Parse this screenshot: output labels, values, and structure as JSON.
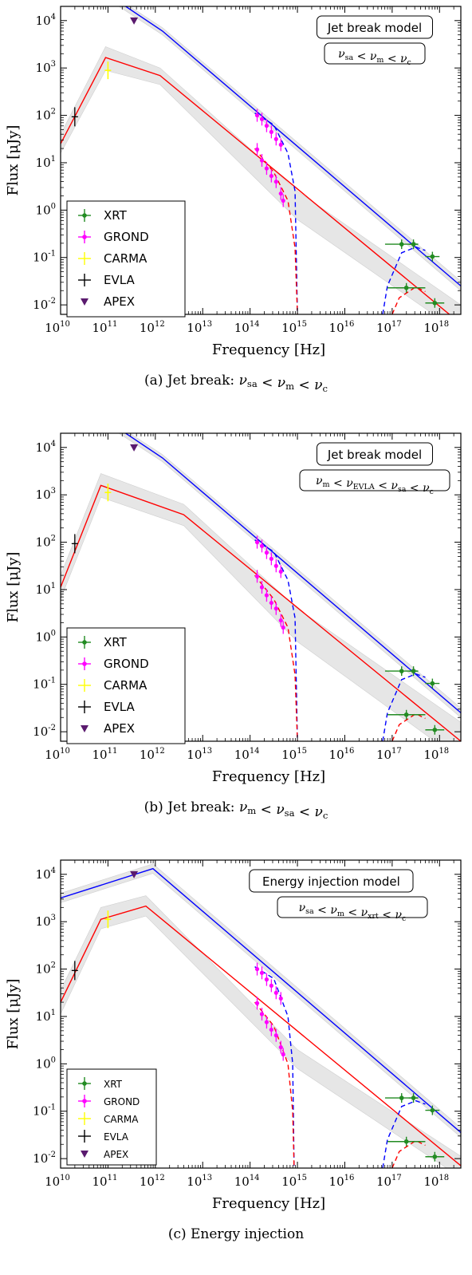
{
  "chart_data": [
    {
      "type": "line",
      "panel": "a",
      "caption": "(a) Jet break: ν_sa < ν_m < ν_c",
      "caption_parts": [
        "(a) Jet break: ",
        "ν",
        "sa",
        " < ",
        "ν",
        "m",
        " < ",
        "ν",
        "c"
      ],
      "model_title": "Jet break model",
      "model_condition": [
        "ν",
        "sa",
        " < ",
        "ν",
        "m",
        " < ",
        "ν",
        "c"
      ],
      "xlabel": "Frequency [Hz]",
      "ylabel": "Flux [μJy]",
      "xscale": "log",
      "yscale": "log",
      "xlim_log10": [
        10,
        18.45
      ],
      "ylim_log10": [
        -2.2,
        4.3
      ],
      "x_ticks": [
        "10",
        "11",
        "12",
        "13",
        "14",
        "15",
        "16",
        "17",
        "18"
      ],
      "y_ticks": [
        "-2",
        "-1",
        "0",
        "1",
        "2",
        "3",
        "4"
      ],
      "legend": [
        "XRT",
        "GROND",
        "CARMA",
        "EVLA",
        "APEX"
      ],
      "legend_placement": "lower-left",
      "series": [
        {
          "color": "#0000ff",
          "style": "solid",
          "points": [
            [
              10.0,
              4.75
            ],
            [
              11.0,
              4.55
            ],
            [
              12.15,
              3.78
            ],
            [
              18.45,
              -1.6
            ]
          ]
        },
        {
          "color": "#ff0000",
          "style": "solid",
          "points": [
            [
              10.0,
              1.4
            ],
            [
              10.95,
              3.22
            ],
            [
              12.1,
              2.84
            ],
            [
              18.45,
              -2.4
            ]
          ]
        },
        {
          "color": "#0000ff",
          "style": "dashed",
          "points": [
            [
              14.1,
              2.05
            ],
            [
              14.5,
              1.8
            ],
            [
              14.8,
              1.2
            ],
            [
              14.95,
              0.4
            ],
            [
              15.0,
              -2.2
            ]
          ]
        },
        {
          "color": "#ff0000",
          "style": "dashed",
          "points": [
            [
              14.1,
              1.3
            ],
            [
              14.5,
              0.8
            ],
            [
              14.8,
              0.2
            ],
            [
              14.95,
              -0.8
            ],
            [
              15.0,
              -2.2
            ]
          ]
        },
        {
          "color": "#0000ff",
          "style": "dashed",
          "points": [
            [
              16.8,
              -2.2
            ],
            [
              16.9,
              -1.6
            ],
            [
              17.2,
              -0.9
            ],
            [
              17.5,
              -0.78
            ],
            [
              17.7,
              -0.85
            ]
          ]
        },
        {
          "color": "#ff0000",
          "style": "dashed",
          "points": [
            [
              17.0,
              -2.2
            ],
            [
              17.15,
              -1.85
            ],
            [
              17.5,
              -1.62
            ],
            [
              17.7,
              -1.72
            ]
          ]
        }
      ],
      "bands": [
        {
          "upper": [
            [
              10.0,
              1.6
            ],
            [
              10.95,
              3.45
            ],
            [
              12.1,
              3.0
            ],
            [
              15.0,
              0.4
            ],
            [
              18.45,
              -2.0
            ]
          ],
          "lower": [
            [
              10.0,
              1.2
            ],
            [
              10.95,
              2.95
            ],
            [
              12.1,
              2.65
            ],
            [
              15.0,
              -0.2
            ],
            [
              18.45,
              -2.6
            ]
          ]
        },
        {
          "upper": [
            [
              11.0,
              4.6
            ],
            [
              12.15,
              3.85
            ],
            [
              18.45,
              -1.5
            ]
          ],
          "lower": [
            [
              11.0,
              4.45
            ],
            [
              12.15,
              3.7
            ],
            [
              18.45,
              -1.7
            ]
          ]
        }
      ],
      "data": {
        "XRT": [
          [
            17.2,
            -0.72,
            0.35
          ],
          [
            17.45,
            -0.72,
            0.1
          ],
          [
            17.85,
            -0.98,
            0.15
          ],
          [
            17.3,
            -1.64,
            0.4
          ],
          [
            17.9,
            -1.96,
            0.2
          ]
        ],
        "GROND": [
          [
            14.15,
            1.28
          ],
          [
            14.25,
            1.05
          ],
          [
            14.35,
            0.88
          ],
          [
            14.45,
            0.72
          ],
          [
            14.55,
            0.6
          ],
          [
            14.65,
            0.35
          ],
          [
            14.7,
            0.2
          ],
          [
            14.15,
            2.0
          ],
          [
            14.25,
            1.92
          ],
          [
            14.35,
            1.78
          ],
          [
            14.45,
            1.65
          ],
          [
            14.55,
            1.5
          ],
          [
            14.65,
            1.38
          ]
        ],
        "CARMA": [
          [
            11.0,
            2.95
          ]
        ],
        "EVLA": [
          [
            10.3,
            1.97
          ]
        ],
        "APEX": [
          [
            11.55,
            4.0
          ]
        ]
      }
    },
    {
      "type": "line",
      "panel": "b",
      "caption": "(b) Jet break: ν_m < ν_sa < ν_c",
      "caption_parts": [
        "(b) Jet break: ",
        "ν",
        "m",
        " < ",
        "ν",
        "sa",
        " < ",
        "ν",
        "c"
      ],
      "model_title": "Jet break model",
      "model_condition": [
        "ν",
        "m",
        " < ",
        "ν",
        "EVLA",
        " < ",
        "ν",
        "sa",
        " < ",
        "ν",
        "c"
      ],
      "xlabel": "Frequency [Hz]",
      "ylabel": "Flux [μJy]",
      "xscale": "log",
      "yscale": "log",
      "xlim_log10": [
        10,
        18.45
      ],
      "ylim_log10": [
        -2.2,
        4.3
      ],
      "x_ticks": [
        "10",
        "11",
        "12",
        "13",
        "14",
        "15",
        "16",
        "17",
        "18"
      ],
      "y_ticks": [
        "-2",
        "-1",
        "0",
        "1",
        "2",
        "3",
        "4"
      ],
      "legend": [
        "XRT",
        "GROND",
        "CARMA",
        "EVLA",
        "APEX"
      ],
      "legend_placement": "lower-left",
      "series": [
        {
          "color": "#0000ff",
          "style": "solid",
          "points": [
            [
              10.0,
              4.75
            ],
            [
              11.0,
              4.55
            ],
            [
              12.15,
              3.78
            ],
            [
              18.45,
              -1.6
            ]
          ]
        },
        {
          "color": "#ff0000",
          "style": "solid",
          "points": [
            [
              10.0,
              1.05
            ],
            [
              10.85,
              3.2
            ],
            [
              12.6,
              2.58
            ],
            [
              18.45,
              -2.2
            ]
          ]
        },
        {
          "color": "#0000ff",
          "style": "dashed",
          "points": [
            [
              14.1,
              2.05
            ],
            [
              14.5,
              1.8
            ],
            [
              14.8,
              1.2
            ],
            [
              14.95,
              0.4
            ],
            [
              15.0,
              -2.2
            ]
          ]
        },
        {
          "color": "#ff0000",
          "style": "dashed",
          "points": [
            [
              14.1,
              1.3
            ],
            [
              14.5,
              0.8
            ],
            [
              14.8,
              0.2
            ],
            [
              14.95,
              -0.8
            ],
            [
              15.0,
              -2.2
            ]
          ]
        },
        {
          "color": "#0000ff",
          "style": "dashed",
          "points": [
            [
              16.8,
              -2.2
            ],
            [
              16.9,
              -1.6
            ],
            [
              17.2,
              -0.9
            ],
            [
              17.5,
              -0.78
            ],
            [
              17.7,
              -0.85
            ]
          ]
        },
        {
          "color": "#ff0000",
          "style": "dashed",
          "points": [
            [
              17.0,
              -2.2
            ],
            [
              17.15,
              -1.85
            ],
            [
              17.5,
              -1.62
            ],
            [
              17.7,
              -1.72
            ]
          ]
        }
      ],
      "bands": [
        {
          "upper": [
            [
              10.0,
              1.3
            ],
            [
              10.85,
              3.45
            ],
            [
              12.6,
              2.8
            ],
            [
              15.0,
              0.6
            ],
            [
              18.45,
              -1.8
            ]
          ],
          "lower": [
            [
              10.0,
              0.8
            ],
            [
              10.85,
              2.95
            ],
            [
              12.6,
              2.35
            ],
            [
              15.0,
              -0.1
            ],
            [
              18.45,
              -2.6
            ]
          ]
        },
        {
          "upper": [
            [
              11.0,
              4.6
            ],
            [
              12.15,
              3.85
            ],
            [
              18.45,
              -1.5
            ]
          ],
          "lower": [
            [
              11.0,
              4.45
            ],
            [
              12.15,
              3.7
            ],
            [
              18.45,
              -1.7
            ]
          ]
        }
      ],
      "data": {
        "XRT": [
          [
            17.2,
            -0.72,
            0.35
          ],
          [
            17.45,
            -0.72,
            0.1
          ],
          [
            17.85,
            -0.98,
            0.15
          ],
          [
            17.3,
            -1.64,
            0.4
          ],
          [
            17.9,
            -1.96,
            0.2
          ]
        ],
        "GROND": [
          [
            14.15,
            1.28
          ],
          [
            14.25,
            1.05
          ],
          [
            14.35,
            0.88
          ],
          [
            14.45,
            0.72
          ],
          [
            14.55,
            0.6
          ],
          [
            14.65,
            0.35
          ],
          [
            14.7,
            0.2
          ],
          [
            14.15,
            2.0
          ],
          [
            14.25,
            1.92
          ],
          [
            14.35,
            1.78
          ],
          [
            14.45,
            1.65
          ],
          [
            14.55,
            1.5
          ],
          [
            14.65,
            1.38
          ]
        ],
        "CARMA": [
          [
            11.0,
            3.05
          ]
        ],
        "EVLA": [
          [
            10.3,
            1.97
          ]
        ],
        "APEX": [
          [
            11.55,
            4.0
          ]
        ]
      }
    },
    {
      "type": "line",
      "panel": "c",
      "caption": "(c) Energy injection",
      "caption_parts": [
        "(c) Energy injection"
      ],
      "model_title": "Energy injection model",
      "model_condition": [
        "ν",
        "sa",
        " < ",
        "ν",
        "m",
        " < ",
        "ν",
        "xrt",
        " < ",
        "ν",
        "c"
      ],
      "xlabel": "Frequency [Hz]",
      "ylabel": "Flux [μJy]",
      "xscale": "log",
      "yscale": "log",
      "xlim_log10": [
        10,
        18.45
      ],
      "ylim_log10": [
        -2.2,
        4.3
      ],
      "x_ticks": [
        "10",
        "11",
        "12",
        "13",
        "14",
        "15",
        "16",
        "17",
        "18"
      ],
      "y_ticks": [
        "-2",
        "-1",
        "0",
        "1",
        "2",
        "3",
        "4"
      ],
      "legend": [
        "XRT",
        "GROND",
        "CARMA",
        "EVLA",
        "APEX"
      ],
      "legend_placement": "lower-left",
      "series": [
        {
          "color": "#0000ff",
          "style": "solid",
          "points": [
            [
              10.0,
              3.5
            ],
            [
              11.95,
              4.12
            ],
            [
              18.45,
              -1.45
            ]
          ]
        },
        {
          "color": "#ff0000",
          "style": "solid",
          "points": [
            [
              10.0,
              1.3
            ],
            [
              10.85,
              3.05
            ],
            [
              11.8,
              3.33
            ],
            [
              18.45,
              -2.15
            ]
          ]
        },
        {
          "color": "#0000ff",
          "style": "dashed",
          "points": [
            [
              14.1,
              2.05
            ],
            [
              14.5,
              1.8
            ],
            [
              14.8,
              1.0
            ],
            [
              14.9,
              0.0
            ],
            [
              14.93,
              -2.2
            ]
          ]
        },
        {
          "color": "#ff0000",
          "style": "dashed",
          "points": [
            [
              14.1,
              1.3
            ],
            [
              14.5,
              0.8
            ],
            [
              14.8,
              0.0
            ],
            [
              14.9,
              -1.0
            ],
            [
              14.93,
              -2.2
            ]
          ]
        },
        {
          "color": "#0000ff",
          "style": "dashed",
          "points": [
            [
              16.8,
              -2.2
            ],
            [
              16.9,
              -1.6
            ],
            [
              17.2,
              -0.9
            ],
            [
              17.5,
              -0.78
            ],
            [
              17.7,
              -0.85
            ]
          ]
        },
        {
          "color": "#ff0000",
          "style": "dashed",
          "points": [
            [
              17.0,
              -2.2
            ],
            [
              17.15,
              -1.85
            ],
            [
              17.5,
              -1.62
            ],
            [
              17.7,
              -1.72
            ]
          ]
        }
      ],
      "bands": [
        {
          "upper": [
            [
              10.0,
              1.55
            ],
            [
              10.85,
              3.3
            ],
            [
              11.8,
              3.55
            ],
            [
              15.0,
              0.3
            ],
            [
              18.45,
              -1.95
            ]
          ],
          "lower": [
            [
              10.0,
              1.05
            ],
            [
              10.85,
              2.85
            ],
            [
              11.8,
              3.12
            ],
            [
              15.0,
              -0.1
            ],
            [
              18.45,
              -2.4
            ]
          ]
        },
        {
          "upper": [
            [
              10.0,
              3.6
            ],
            [
              11.95,
              4.22
            ],
            [
              18.45,
              -1.35
            ]
          ],
          "lower": [
            [
              10.0,
              3.4
            ],
            [
              11.95,
              4.02
            ],
            [
              18.45,
              -1.55
            ]
          ]
        }
      ],
      "data": {
        "XRT": [
          [
            17.2,
            -0.72,
            0.35
          ],
          [
            17.45,
            -0.72,
            0.1
          ],
          [
            17.85,
            -0.98,
            0.15
          ],
          [
            17.3,
            -1.64,
            0.4
          ],
          [
            17.9,
            -1.96,
            0.2
          ]
        ],
        "GROND": [
          [
            14.15,
            1.28
          ],
          [
            14.25,
            1.05
          ],
          [
            14.35,
            0.88
          ],
          [
            14.45,
            0.72
          ],
          [
            14.55,
            0.6
          ],
          [
            14.65,
            0.35
          ],
          [
            14.7,
            0.2
          ],
          [
            14.15,
            2.0
          ],
          [
            14.25,
            1.92
          ],
          [
            14.35,
            1.78
          ],
          [
            14.45,
            1.65
          ],
          [
            14.55,
            1.5
          ],
          [
            14.65,
            1.38
          ]
        ],
        "CARMA": [
          [
            11.0,
            3.05
          ]
        ],
        "EVLA": [
          [
            10.3,
            1.97
          ]
        ],
        "APEX": [
          [
            11.55,
            4.0
          ]
        ]
      }
    }
  ],
  "colors": {
    "XRT": "#228b22",
    "GROND": "#ff00ff",
    "CARMA": "#ffff00",
    "EVLA": "#000000",
    "APEX": "#5a1a6e",
    "band": "#dddddd"
  }
}
